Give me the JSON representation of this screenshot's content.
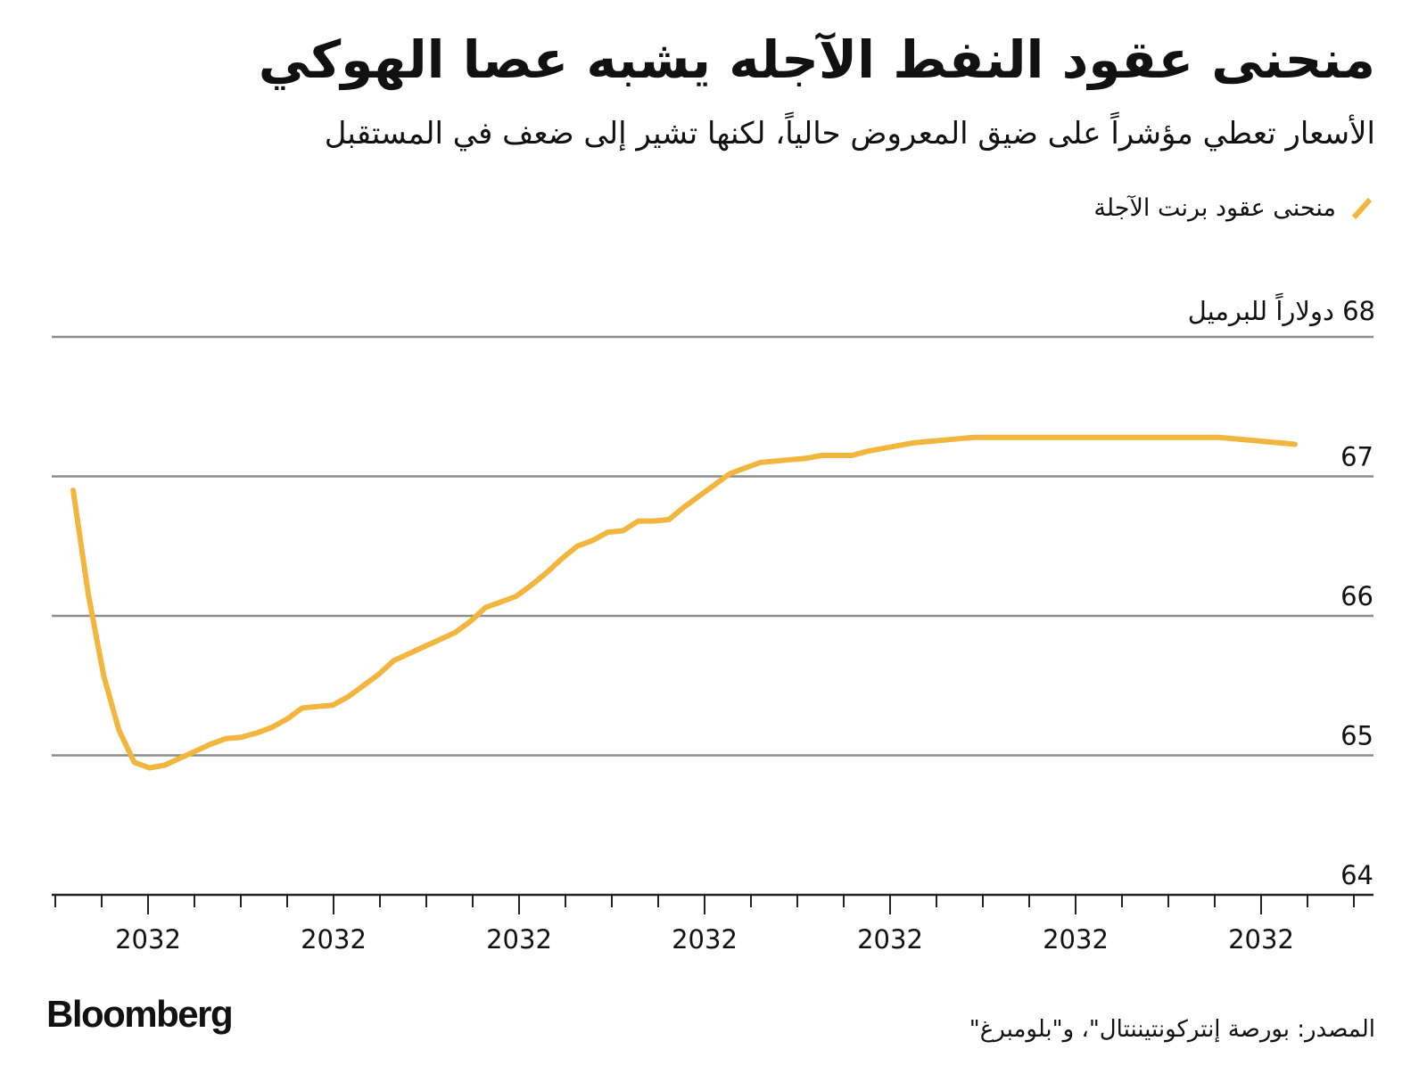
{
  "title": "منحنى عقود النفط الآجله يشبه عصا الهوكي",
  "subtitle": "الأسعار تعطي مؤشراً على ضيق المعروض حالياً، لكنها تشير إلى ضعف في المستقبل",
  "legend": {
    "label": "منحنى عقود برنت الآجلة",
    "color": "#f2b63f"
  },
  "source": "المصدر: بورصة إنتركونتيننتال\"، و\"بلومبرغ\"",
  "logo": "Bloomberg",
  "colors": {
    "line": "#f2b63f",
    "grid": "#8c8c8c",
    "axis": "#222222",
    "text": "#111111"
  },
  "chart_data": {
    "type": "line",
    "title": "منحنى عقود النفط الآجله يشبه عصا الهوكي",
    "subtitle": "الأسعار تعطي مؤشراً على ضيق المعروض حالياً، لكنها تشير إلى ضعف في المستقبل",
    "ylabel": "68 دولاراً للبرميل",
    "ylim": [
      64,
      68
    ],
    "yticks": [
      64,
      65,
      66,
      67,
      68
    ],
    "y_tick_labels": [
      "64",
      "65",
      "66",
      "67",
      "68"
    ],
    "xticks_major_labels": [
      "2032",
      "2032",
      "2032",
      "2032",
      "2032",
      "2032",
      "2032"
    ],
    "grid": true,
    "legend_position": "top-right",
    "series": [
      {
        "name": "منحنى عقود برنت الآجلة",
        "color": "#f2b63f",
        "x": [
          0,
          1,
          2,
          3,
          4,
          5,
          6,
          7,
          8,
          9,
          10,
          11,
          12,
          13,
          14,
          15,
          16,
          17,
          18,
          19,
          20,
          21,
          22,
          23,
          24,
          25,
          26,
          27,
          28,
          29,
          30,
          31,
          32,
          33,
          34,
          35,
          36,
          37,
          38,
          39,
          40,
          41,
          42,
          43,
          44,
          45,
          46,
          47,
          48,
          49,
          50,
          51,
          52,
          53,
          54,
          55,
          56,
          57,
          58,
          59,
          60,
          61,
          62,
          63,
          64,
          65,
          66,
          67,
          68,
          69,
          70,
          71,
          72,
          73,
          74,
          75,
          76,
          77,
          78,
          79,
          80
        ],
        "y": [
          66.9,
          66.15,
          65.57,
          65.18,
          64.95,
          64.91,
          64.93,
          64.98,
          65.03,
          65.08,
          65.12,
          65.13,
          65.16,
          65.2,
          65.26,
          65.34,
          65.35,
          65.36,
          65.42,
          65.5,
          65.58,
          65.68,
          65.73,
          65.78,
          65.83,
          65.88,
          65.96,
          66.06,
          66.1,
          66.14,
          66.22,
          66.31,
          66.41,
          66.5,
          66.54,
          66.6,
          66.61,
          66.68,
          66.68,
          66.69,
          66.78,
          66.86,
          66.94,
          67.02,
          67.06,
          67.1,
          67.11,
          67.12,
          67.13,
          67.15,
          67.15,
          67.15,
          67.18,
          67.2,
          67.22,
          67.24,
          67.25,
          67.26,
          67.27,
          67.28,
          67.28,
          67.28,
          67.28,
          67.28,
          67.28,
          67.28,
          67.28,
          67.28,
          67.28,
          67.28,
          67.28,
          67.28,
          67.28,
          67.28,
          67.28,
          67.28,
          67.27,
          67.26,
          67.25,
          67.24,
          67.23
        ]
      }
    ]
  }
}
